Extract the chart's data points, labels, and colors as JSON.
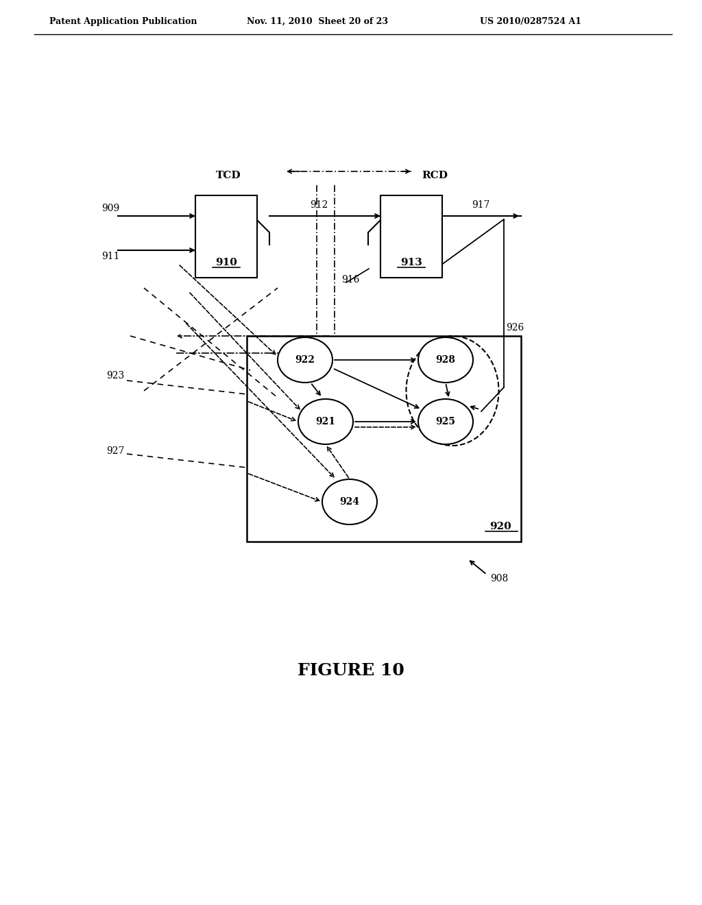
{
  "bg_color": "#ffffff",
  "header_left": "Patent Application Publication",
  "header_center": "Nov. 11, 2010  Sheet 20 of 23",
  "header_right": "US 2010/0287524 A1",
  "figure_label": "FIGURE 10",
  "figure_number": "908",
  "tcd_label": "TCD",
  "rcd_label": "RCD",
  "box910_label": "910",
  "box913_label": "913",
  "box920_label": "920",
  "node_labels": [
    "921",
    "922",
    "924",
    "925",
    "928"
  ],
  "line_color": "#000000",
  "text_color": "#000000"
}
